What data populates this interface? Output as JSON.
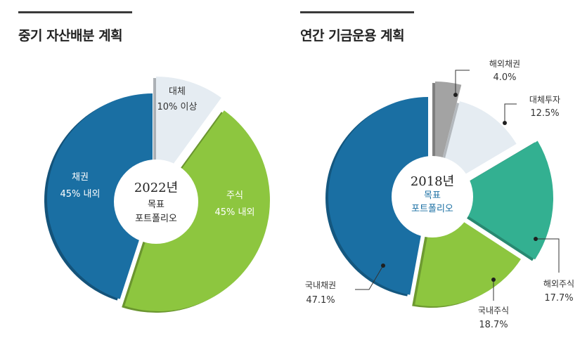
{
  "chart_data": [
    {
      "type": "pie",
      "title": "중기 자산배분 계획",
      "center_label": {
        "year": "2022년",
        "line1": "목표",
        "line2": "포트폴리오"
      },
      "slices": [
        {
          "name": "대체",
          "value": 10,
          "label": "10% 이상",
          "color": "#e5ecf2"
        },
        {
          "name": "주식",
          "value": 45,
          "label": "45% 내외",
          "color": "#8dc63f"
        },
        {
          "name": "채권",
          "value": 45,
          "label": "45% 내외",
          "color": "#1a6fa3"
        }
      ]
    },
    {
      "type": "pie",
      "title": "연간 기금운용 계획",
      "center_label": {
        "year": "2018년",
        "line1": "목표",
        "line2": "포트폴리오"
      },
      "slices": [
        {
          "name": "해외채권",
          "value": 4.0,
          "label": "4.0%",
          "color": "#a3a3a3"
        },
        {
          "name": "대체투자",
          "value": 12.5,
          "label": "12.5%",
          "color": "#e5ecf2"
        },
        {
          "name": "해외주식",
          "value": 17.7,
          "label": "17.7%",
          "color": "#33b091"
        },
        {
          "name": "국내주식",
          "value": 18.7,
          "label": "18.7%",
          "color": "#8dc63f"
        },
        {
          "name": "국내채권",
          "value": 47.1,
          "label": "47.1%",
          "color": "#1a6fa3"
        }
      ]
    }
  ],
  "colors": {
    "rule": "#3a3a3a",
    "center_year": "#222222",
    "center_sub_left": "#222222",
    "center_sub_right": "#1a6fa3"
  }
}
